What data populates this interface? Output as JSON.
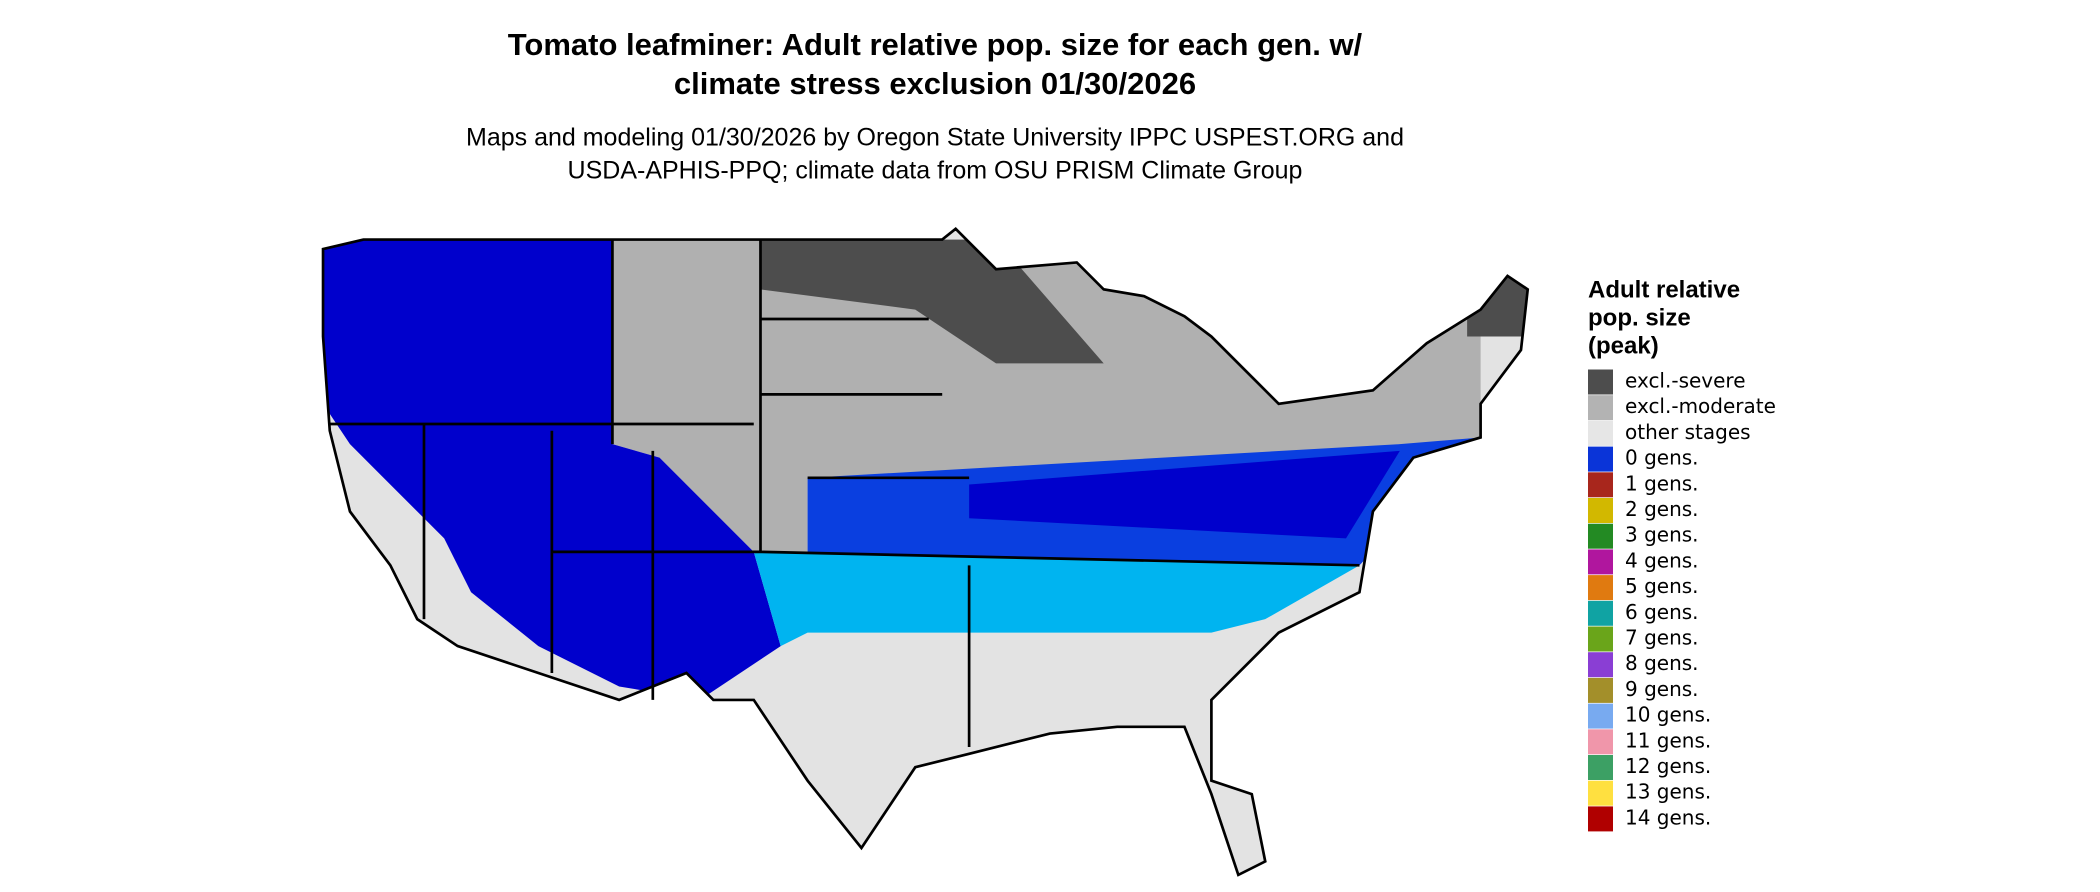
{
  "header": {
    "title": [
      "Tomato leafminer: Adult relative pop. size for each gen. w/",
      "climate stress exclusion 01/30/2026"
    ],
    "subtitle": [
      "Maps and modeling 01/30/2026 by Oregon State University IPPC USPEST.ORG and",
      "USDA-APHIS-PPQ; climate data from OSU PRISM Climate Group"
    ]
  },
  "legend": {
    "title": [
      "Adult relative",
      "pop. size",
      "(peak)"
    ],
    "items": [
      {
        "label": "excl.-severe",
        "color": "#4d4d4d"
      },
      {
        "label": "excl.-moderate",
        "color": "#b3b3b3"
      },
      {
        "label": "other stages",
        "color": "#e6e6e6"
      },
      {
        "label": "0 gens.",
        "color": "#0a34d8"
      },
      {
        "label": "1 gens.",
        "color": "#a8261c"
      },
      {
        "label": "2 gens.",
        "color": "#d2b800"
      },
      {
        "label": "3 gens.",
        "color": "#238a23"
      },
      {
        "label": "4 gens.",
        "color": "#b0169e"
      },
      {
        "label": "5 gens.",
        "color": "#e07a10"
      },
      {
        "label": "6 gens.",
        "color": "#10a3a3"
      },
      {
        "label": "7 gens.",
        "color": "#6aa51a"
      },
      {
        "label": "8 gens.",
        "color": "#8a3ed4"
      },
      {
        "label": "9 gens.",
        "color": "#a38f2a"
      },
      {
        "label": "10 gens.",
        "color": "#78aaf0"
      },
      {
        "label": "11 gens.",
        "color": "#f096aa"
      },
      {
        "label": "12 gens.",
        "color": "#3ca064"
      },
      {
        "label": "13 gens.",
        "color": "#ffe040"
      },
      {
        "label": "14 gens.",
        "color": "#b00000"
      }
    ]
  }
}
